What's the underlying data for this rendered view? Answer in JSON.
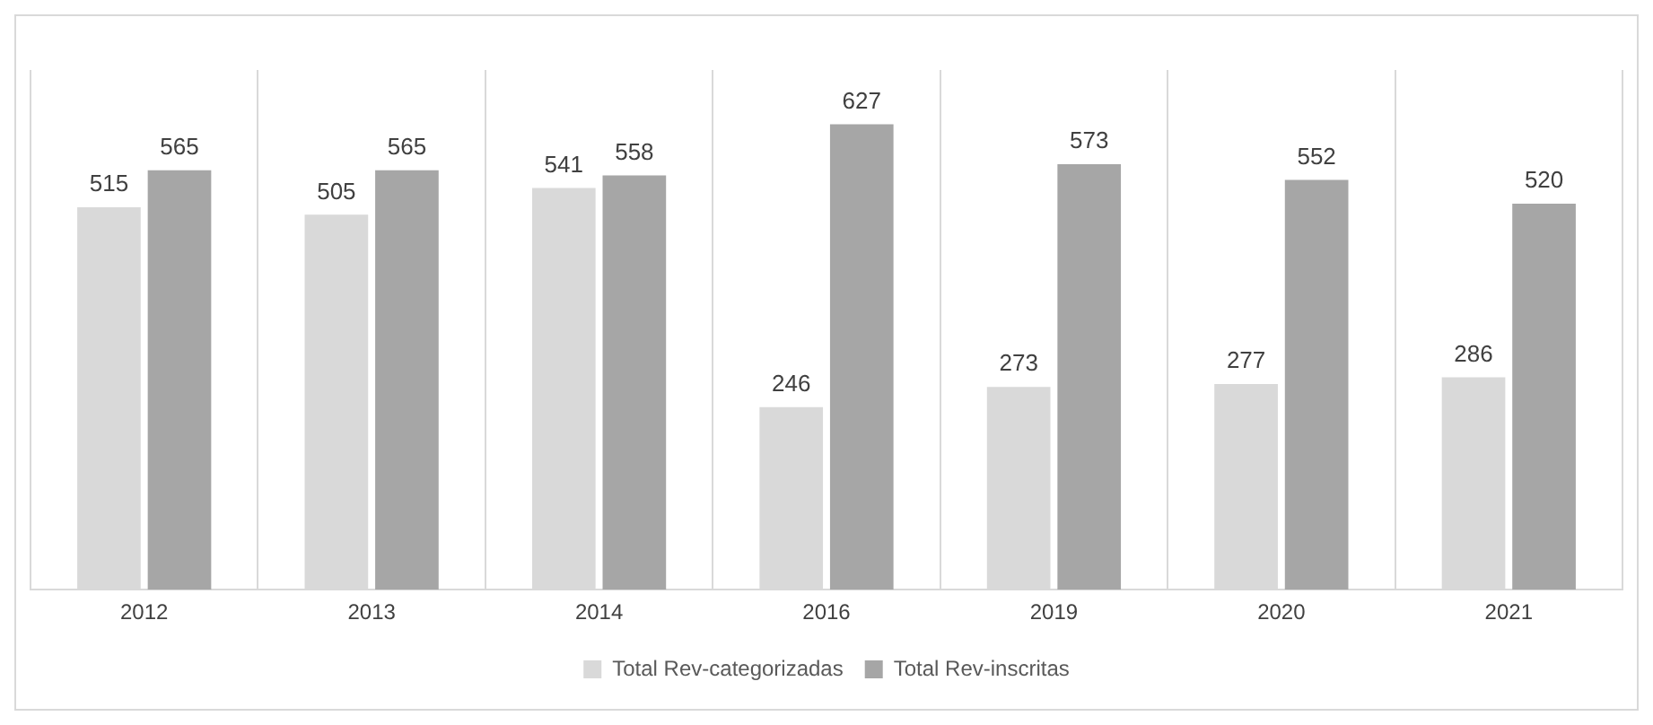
{
  "chart_data": {
    "type": "bar",
    "categories": [
      "2012",
      "2013",
      "2014",
      "2016",
      "2019",
      "2020",
      "2021"
    ],
    "series": [
      {
        "name": "Total Rev-categorizadas",
        "color": "#d9d9d9",
        "values": [
          515,
          505,
          541,
          246,
          273,
          277,
          286
        ]
      },
      {
        "name": "Total Rev-inscritas",
        "color": "#a6a6a6",
        "values": [
          565,
          565,
          558,
          627,
          573,
          552,
          520
        ]
      }
    ],
    "data_labels": true,
    "grid": "x",
    "legend": "bottom",
    "tick_labels": "x"
  }
}
